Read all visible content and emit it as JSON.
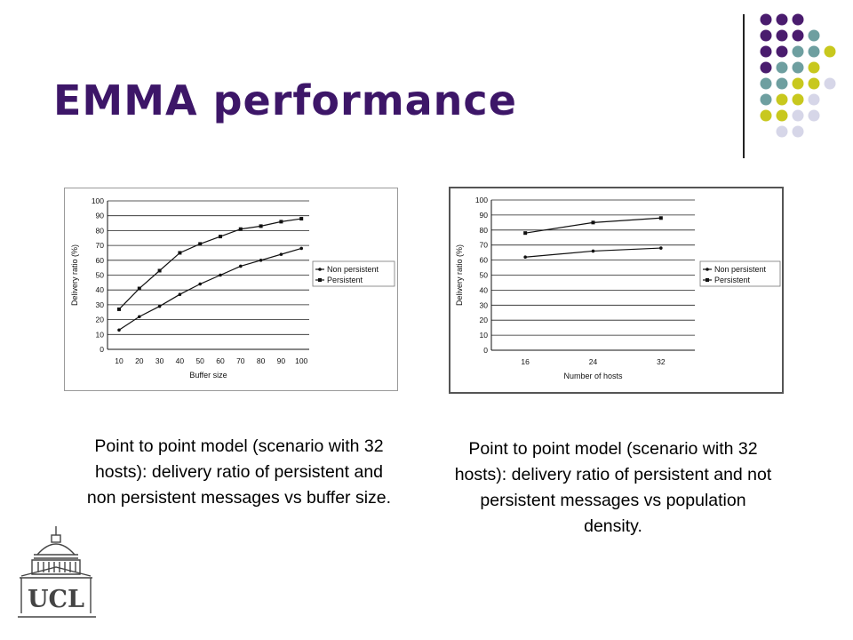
{
  "slide": {
    "title": "EMMA performance",
    "accent_colors": {
      "purple": "#4a1c6e",
      "teal": "#6e9fa0",
      "lime": "#c8c81e",
      "lavender": "#d6d6e8"
    }
  },
  "captions": {
    "left": "Point to point model (scenario with 32 hosts):  delivery ratio of persistent and non persistent messages vs buffer size.",
    "right": "Point to point model (scenario with 32 hosts): delivery ratio of persistent and not persistent messages vs population density."
  },
  "logo": {
    "text": "UCL"
  },
  "chart_data": [
    {
      "type": "line",
      "xlabel": "Buffer size",
      "ylabel": "Delivery ratio (%)",
      "ylim": [
        0,
        100
      ],
      "yticks": [
        0,
        10,
        20,
        30,
        40,
        50,
        60,
        70,
        80,
        90,
        100
      ],
      "x": [
        10,
        20,
        30,
        40,
        50,
        60,
        70,
        80,
        90,
        100
      ],
      "grid": true,
      "legend_position": "right",
      "series": [
        {
          "name": "Non persistent",
          "values": [
            13,
            22,
            29,
            37,
            44,
            50,
            56,
            60,
            64,
            68
          ]
        },
        {
          "name": "Persistent",
          "values": [
            27,
            41,
            53,
            65,
            71,
            76,
            81,
            83,
            86,
            88
          ]
        }
      ]
    },
    {
      "type": "line",
      "xlabel": "Number of hosts",
      "ylabel": "Delivery ratio (%)",
      "ylim": [
        0,
        100
      ],
      "yticks": [
        0,
        10,
        20,
        30,
        40,
        50,
        60,
        70,
        80,
        90,
        100
      ],
      "x": [
        16,
        24,
        32
      ],
      "grid": true,
      "legend_position": "right",
      "series": [
        {
          "name": "Non persistent",
          "values": [
            62,
            66,
            68
          ]
        },
        {
          "name": "Persistent",
          "values": [
            78,
            85,
            88
          ]
        }
      ]
    }
  ]
}
